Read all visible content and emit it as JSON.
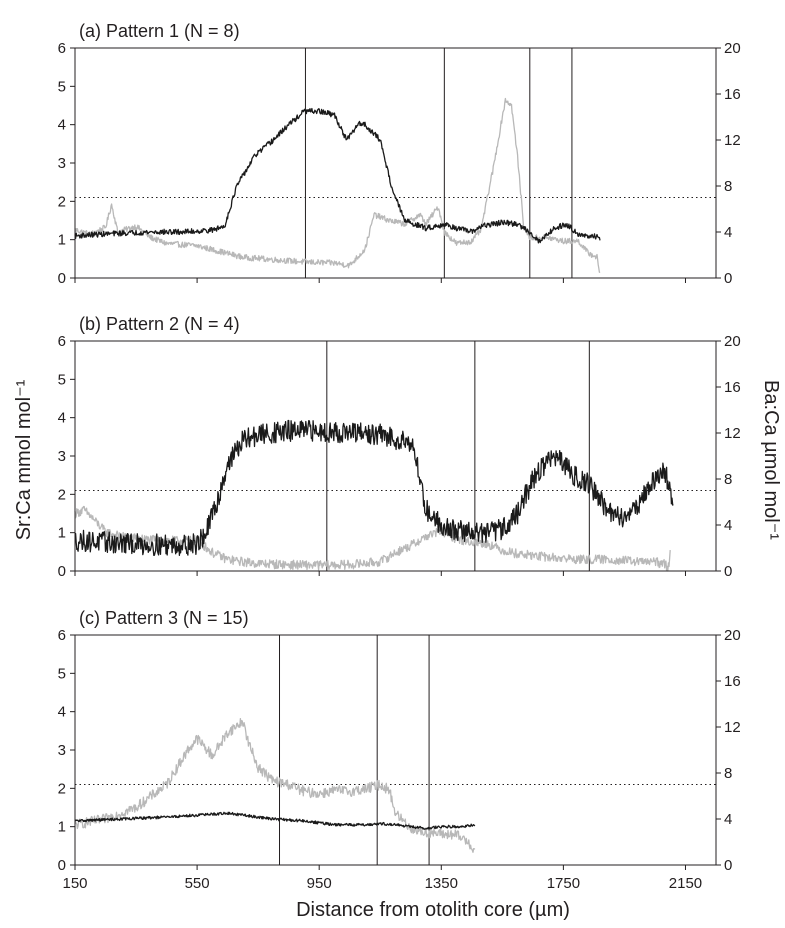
{
  "colors": {
    "sr_ca": "#1a1a1a",
    "ba_ca": "#b8b8b8",
    "axis": "#231f20"
  },
  "y_left_label": "Sr:Ca mmol mol⁻¹",
  "y_right_label": "Ba:Ca µmol mol⁻¹",
  "x_label": "Distance from otolith core (µm)",
  "chart_data": [
    {
      "type": "line",
      "title": "(a) Pattern 1 (N = 8)",
      "xlim": [
        150,
        2250
      ],
      "x_ticks": [
        150,
        550,
        950,
        1350,
        1750,
        2150
      ],
      "ylim": [
        0,
        6
      ],
      "y_ticks": [
        0,
        1,
        2,
        3,
        4,
        5,
        6
      ],
      "y2lim": [
        0,
        20
      ],
      "y2_ticks": [
        0,
        4,
        8,
        12,
        16,
        20
      ],
      "reference_line_sr": 2.1,
      "vertical_lines": [
        905,
        1360,
        1640,
        1778
      ],
      "series": [
        {
          "name": "Sr:Ca",
          "axis": "left",
          "noise": 0.07,
          "x": [
            150,
            250,
            400,
            500,
            600,
            640,
            680,
            740,
            800,
            850,
            880,
            900,
            950,
            1000,
            1040,
            1060,
            1080,
            1100,
            1150,
            1190,
            1230,
            1300,
            1360,
            1400,
            1450,
            1480,
            1550,
            1600,
            1640,
            1670,
            1720,
            1760,
            1800,
            1840,
            1850,
            1870
          ],
          "y": [
            1.1,
            1.15,
            1.2,
            1.2,
            1.25,
            1.35,
            2.4,
            3.2,
            3.6,
            4.0,
            4.2,
            4.35,
            4.35,
            4.25,
            3.6,
            3.8,
            4.05,
            4.0,
            3.6,
            2.3,
            1.5,
            1.3,
            1.4,
            1.3,
            1.2,
            1.35,
            1.45,
            1.4,
            1.2,
            0.95,
            1.3,
            1.4,
            1.15,
            1.05,
            1.1,
            1.05
          ]
        },
        {
          "name": "Ba:Ca",
          "axis": "right",
          "noise": 0.25,
          "x": [
            150,
            200,
            250,
            270,
            290,
            350,
            400,
            450,
            550,
            700,
            800,
            900,
            1000,
            1050,
            1100,
            1130,
            1180,
            1230,
            1280,
            1300,
            1340,
            1360,
            1400,
            1450,
            1480,
            1520,
            1560,
            1580,
            1600,
            1620,
            1640,
            1700,
            1750,
            1800,
            1830,
            1860,
            1870
          ],
          "y": [
            4.2,
            3.8,
            4.4,
            6.4,
            4.0,
            4.5,
            3.5,
            3.0,
            2.8,
            1.8,
            1.6,
            1.4,
            1.3,
            1.1,
            2.5,
            5.5,
            5.0,
            4.7,
            5.5,
            4.7,
            6.2,
            4.0,
            3.0,
            3.2,
            4.2,
            9.5,
            15.5,
            15.0,
            10.5,
            4.5,
            3.5,
            3.5,
            3.2,
            3.2,
            2.2,
            1.8,
            0.3
          ]
        }
      ]
    },
    {
      "type": "line",
      "title": "(b) Pattern 2 (N = 4)",
      "xlim": [
        150,
        2250
      ],
      "x_ticks": [
        150,
        550,
        950,
        1350,
        1750,
        2150
      ],
      "ylim": [
        0,
        6
      ],
      "y_ticks": [
        0,
        1,
        2,
        3,
        4,
        5,
        6
      ],
      "y2lim": [
        0,
        20
      ],
      "y2_ticks": [
        0,
        4,
        8,
        12,
        16,
        20
      ],
      "reference_line_sr": 2.1,
      "vertical_lines": [
        975,
        1460,
        1835
      ],
      "series": [
        {
          "name": "Sr:Ca",
          "axis": "left",
          "noise": 0.28,
          "x": [
            150,
            250,
            350,
            450,
            550,
            580,
            620,
            650,
            700,
            750,
            850,
            950,
            1050,
            1150,
            1200,
            1250,
            1270,
            1300,
            1350,
            1400,
            1500,
            1550,
            1600,
            1650,
            1700,
            1720,
            1760,
            1800,
            1830,
            1870,
            1900,
            1950,
            2000,
            2050,
            2080,
            2100,
            2110
          ],
          "y": [
            0.8,
            0.75,
            0.7,
            0.68,
            0.7,
            1.0,
            1.9,
            2.8,
            3.4,
            3.55,
            3.65,
            3.65,
            3.6,
            3.55,
            3.45,
            3.4,
            2.8,
            1.6,
            1.2,
            1.05,
            1.0,
            1.1,
            1.5,
            2.4,
            2.9,
            3.0,
            2.7,
            2.4,
            2.3,
            1.9,
            1.5,
            1.4,
            1.8,
            2.4,
            2.6,
            2.2,
            1.5
          ]
        },
        {
          "name": "Ba:Ca",
          "axis": "right",
          "noise": 0.4,
          "x": [
            150,
            180,
            200,
            250,
            300,
            400,
            500,
            550,
            600,
            650,
            700,
            750,
            850,
            950,
            1050,
            1150,
            1200,
            1250,
            1300,
            1350,
            1400,
            1450,
            1500,
            1550,
            1600,
            1700,
            1800,
            1900,
            2000,
            2050,
            2080,
            2095,
            2100
          ],
          "y": [
            5.0,
            5.3,
            4.8,
            3.4,
            3.0,
            2.7,
            2.6,
            2.7,
            1.6,
            1.0,
            0.8,
            0.65,
            0.55,
            0.5,
            0.55,
            0.8,
            1.6,
            2.2,
            3.0,
            3.5,
            2.8,
            2.5,
            2.4,
            1.8,
            1.5,
            1.2,
            1.0,
            1.0,
            0.8,
            0.8,
            0.6,
            0.3,
            2.0
          ]
        }
      ]
    },
    {
      "type": "line",
      "title": "(c) Pattern 3 (N = 15)",
      "xlim": [
        150,
        2250
      ],
      "x_ticks": [
        150,
        550,
        950,
        1350,
        1750,
        2150
      ],
      "ylim": [
        0,
        6
      ],
      "y_ticks": [
        0,
        1,
        2,
        3,
        4,
        5,
        6
      ],
      "y2lim": [
        0,
        20
      ],
      "y2_ticks": [
        0,
        4,
        8,
        12,
        16,
        20
      ],
      "reference_line_sr": 2.1,
      "vertical_lines": [
        820,
        1140,
        1310
      ],
      "series": [
        {
          "name": "Sr:Ca",
          "axis": "left",
          "noise": 0.035,
          "x": [
            150,
            300,
            450,
            550,
            650,
            700,
            800,
            900,
            1000,
            1100,
            1150,
            1200,
            1250,
            1300,
            1350,
            1400,
            1440,
            1460
          ],
          "y": [
            1.15,
            1.2,
            1.25,
            1.3,
            1.35,
            1.3,
            1.2,
            1.15,
            1.05,
            1.05,
            1.08,
            1.05,
            1.0,
            0.95,
            1.0,
            1.0,
            1.02,
            1.05
          ]
        },
        {
          "name": "Ba:Ca",
          "axis": "right",
          "noise": 0.45,
          "x": [
            150,
            250,
            350,
            450,
            520,
            550,
            600,
            650,
            700,
            720,
            750,
            800,
            850,
            900,
            950,
            1000,
            1050,
            1100,
            1150,
            1180,
            1200,
            1250,
            1300,
            1350,
            1400,
            1440,
            1460
          ],
          "y": [
            3.5,
            4.0,
            5.0,
            7.0,
            10.0,
            11.0,
            9.5,
            11.5,
            12.5,
            10.5,
            8.5,
            7.3,
            7.0,
            6.4,
            6.2,
            6.5,
            6.4,
            6.6,
            7.0,
            6.5,
            4.5,
            3.2,
            2.8,
            2.7,
            2.6,
            2.0,
            1.2
          ]
        }
      ]
    }
  ]
}
